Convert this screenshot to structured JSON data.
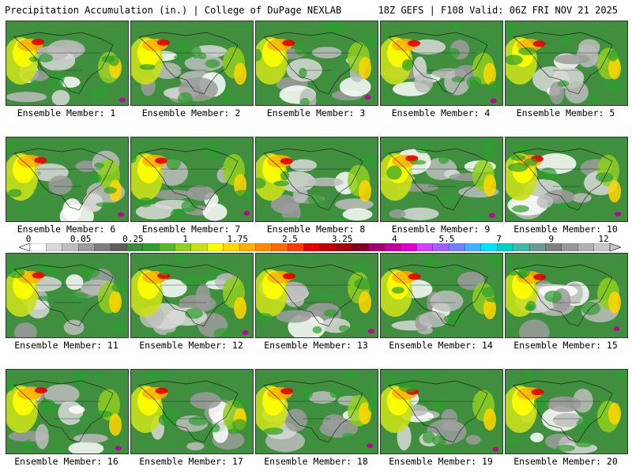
{
  "header": {
    "left_title": "Precipitation Accumulation (in.) | College of DuPage NEXLAB",
    "right_title": "18Z GEFS | F108 Valid: 06Z FRI NOV 21 2025"
  },
  "panels": [
    {
      "label": "Ensemble Member: 1"
    },
    {
      "label": "Ensemble Member: 2"
    },
    {
      "label": "Ensemble Member: 3"
    },
    {
      "label": "Ensemble Member: 4"
    },
    {
      "label": "Ensemble Member: 5"
    },
    {
      "label": "Ensemble Member: 6"
    },
    {
      "label": "Ensemble Member: 7"
    },
    {
      "label": "Ensemble Member: 8"
    },
    {
      "label": "Ensemble Member: 9"
    },
    {
      "label": "Ensemble Member: 10"
    },
    {
      "label": "Ensemble Member: 11"
    },
    {
      "label": "Ensemble Member: 12"
    },
    {
      "label": "Ensemble Member: 13"
    },
    {
      "label": "Ensemble Member: 14"
    },
    {
      "label": "Ensemble Member: 15"
    },
    {
      "label": "Ensemble Member: 16"
    },
    {
      "label": "Ensemble Member: 17"
    },
    {
      "label": "Ensemble Member: 18"
    },
    {
      "label": "Ensemble Member: 19"
    },
    {
      "label": "Ensemble Member: 20"
    }
  ],
  "colorbar": {
    "tick_labels": [
      "0",
      "0.05",
      "0.25",
      "1",
      "1.75",
      "2.5",
      "3.25",
      "4",
      "5.5",
      "7",
      "9",
      "12"
    ],
    "colors": [
      "#ffffff",
      "#d9d9d9",
      "#bdbdbd",
      "#9c9c9c",
      "#7d7d7d",
      "#5f5f5f",
      "#3c8a3c",
      "#2e9e2e",
      "#55b82a",
      "#8fcf1f",
      "#c8e01a",
      "#ffff00",
      "#ffd700",
      "#ffb000",
      "#ff8c00",
      "#ff6a00",
      "#ff3c00",
      "#e60000",
      "#c00000",
      "#a00000",
      "#800020",
      "#a0006e",
      "#c0009a",
      "#e000c8",
      "#d040ff",
      "#a060ff",
      "#7080ff",
      "#40b0ff",
      "#00e0ff",
      "#00d0c0",
      "#40b8a8",
      "#6a9a90",
      "#808080",
      "#989898",
      "#b0b0b0",
      "#c8c8c8"
    ]
  },
  "colors": {
    "map_base": "#3f8f3f",
    "outline": "#111111"
  }
}
